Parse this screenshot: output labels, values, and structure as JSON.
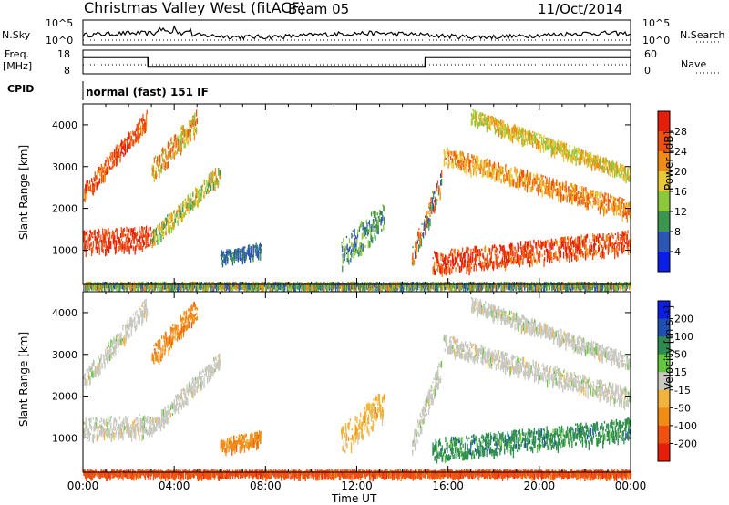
{
  "header": {
    "site": "Christmas Valley West (fitACF)",
    "beam": "Beam 05",
    "date": "11/Oct/2014"
  },
  "left_labels": {
    "nsky": "N.Sky",
    "freq_line1": "Freq.",
    "freq_line2": "[MHz]",
    "cpid": "CPID"
  },
  "right_labels": {
    "nsearch": "N.Search",
    "nave": "Nave"
  },
  "cpid_text": "normal (fast) 151 IF",
  "colors": {
    "power": [
      "#0a1ee6",
      "#2d55b4",
      "#3c9650",
      "#8cc83c",
      "#e6c832",
      "#f08c14",
      "#f05010",
      "#e61e0a"
    ],
    "velocity": [
      "#e61e0a",
      "#f05010",
      "#f08c14",
      "#f0b43c",
      "#c8c8c0",
      "#64c83c",
      "#2d8c50",
      "#1e50b4",
      "#0a1ee6"
    ]
  },
  "chart_data": [
    {
      "type": "line",
      "title": "N.Sky / N.Search",
      "ytick_labels_left": [
        "10^5",
        "10^0"
      ],
      "ytick_labels_right": [
        "10^5",
        "10^0"
      ],
      "x": [
        "00:00",
        "04:00",
        "08:00",
        "12:00",
        "16:00",
        "20:00",
        "00:00"
      ]
    },
    {
      "type": "line",
      "title": "Freq. [MHz] / Nave",
      "ytick_labels_left": [
        "18",
        "8"
      ],
      "ytick_labels_right": [
        "60",
        "0"
      ],
      "series": [
        {
          "name": "Freq.",
          "x": [
            0,
            2.85,
            2.86,
            15.0,
            15.01,
            24
          ],
          "y": [
            15,
            15,
            11,
            11,
            15,
            15
          ]
        }
      ]
    },
    {
      "type": "heatmap",
      "ylabel": "Slant Range [km]",
      "yticks": [
        1000,
        2000,
        3000,
        4000
      ],
      "ylim": [
        180,
        4500
      ],
      "xlim": [
        0,
        24
      ],
      "colorbar": {
        "label": "Power [dB]",
        "ticks": [
          "28",
          "24",
          "20",
          "16",
          "12",
          "8",
          "4"
        ]
      }
    },
    {
      "type": "heatmap",
      "ylabel": "Slant Range [km]",
      "xlabel": "Time UT",
      "yticks": [
        1000,
        2000,
        3000,
        4000
      ],
      "ylim": [
        180,
        4500
      ],
      "xlim": [
        0,
        24
      ],
      "xtick_labels": [
        "00:00",
        "04:00",
        "08:00",
        "12:00",
        "16:00",
        "20:00",
        "00:00"
      ],
      "colorbar": {
        "label": "Velocity [m s⁻¹]",
        "ticks": [
          "200",
          "100",
          "50",
          "15",
          "-15",
          "-50",
          "-100",
          "-200"
        ]
      }
    }
  ]
}
